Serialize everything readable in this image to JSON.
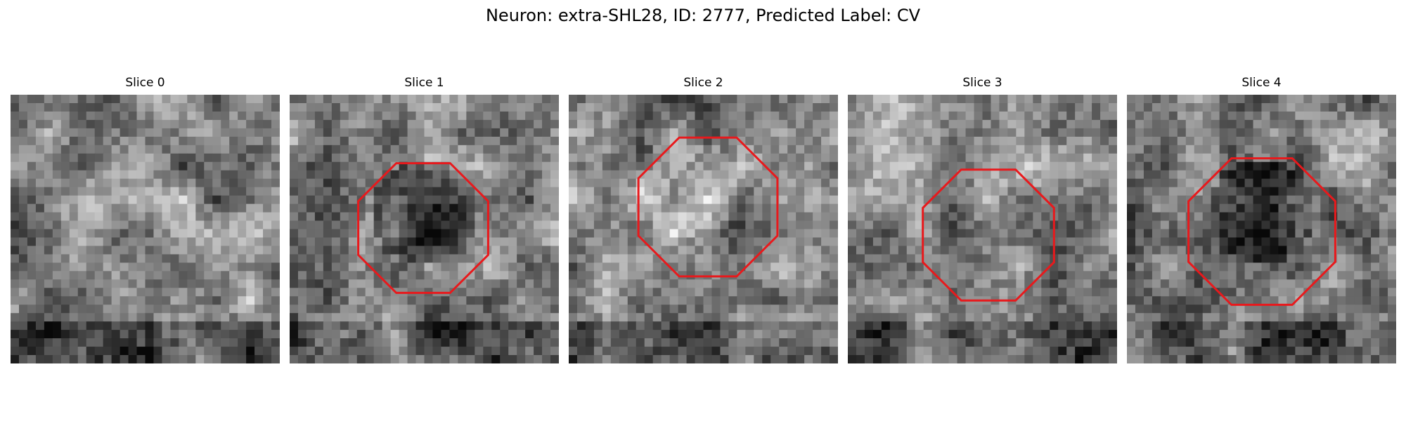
{
  "figure": {
    "title": "Neuron: extra-SHL28, ID: 2777, Predicted Label: CV"
  },
  "outline_color": "#e8191c",
  "slices": [
    {
      "label": "Slice 0",
      "seed": 11,
      "blob": "none",
      "outline": false
    },
    {
      "label": "Slice 1",
      "seed": 23,
      "blob": "dark",
      "outline": true
    },
    {
      "label": "Slice 2",
      "seed": 37,
      "blob": "light",
      "outline": true
    },
    {
      "label": "Slice 3",
      "seed": 51,
      "blob": "mid",
      "outline": true
    },
    {
      "label": "Slice 4",
      "seed": 67,
      "blob": "dark",
      "outline": true
    }
  ]
}
